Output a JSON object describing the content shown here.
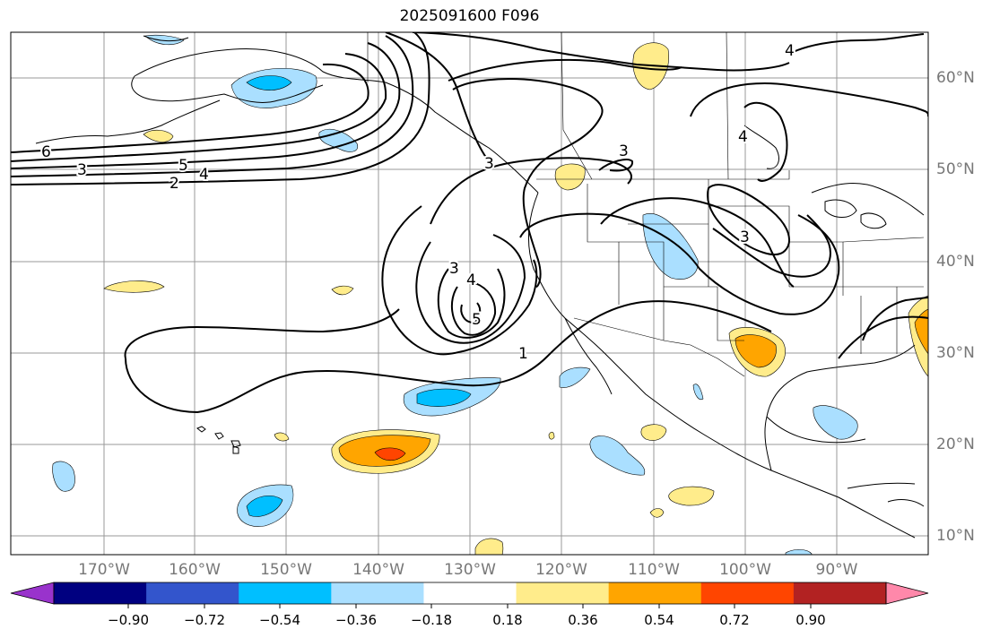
{
  "title": "2025091600 F096",
  "map": {
    "region": "North-east Pacific and North America",
    "lat_labels": [
      "60°N",
      "50°N",
      "40°N",
      "30°N",
      "20°N",
      "10°N"
    ],
    "lon_labels": [
      "170°W",
      "160°W",
      "150°W",
      "140°W",
      "130°W",
      "120°W",
      "110°W",
      "100°W",
      "90°W"
    ],
    "coastline_color": "#000000",
    "grid_color": "#999999",
    "contour_color": "#000000",
    "contour_labels": [
      "6",
      "3",
      "5",
      "4",
      "2",
      "4",
      "3",
      "3",
      "4",
      "5",
      "1",
      "3",
      "4",
      "3"
    ]
  },
  "colorbar": {
    "colors": [
      "#9933cc",
      "#000080",
      "#3355cc",
      "#00bfff",
      "#aadfff",
      "#ffffff",
      "#ffec8b",
      "#ffa500",
      "#ff4500",
      "#b22222",
      "#ff88aa"
    ],
    "tick_labels": [
      "−0.90",
      "−0.72",
      "−0.54",
      "−0.36",
      "−0.18",
      "0.18",
      "0.36",
      "0.54",
      "0.72",
      "0.90"
    ]
  }
}
